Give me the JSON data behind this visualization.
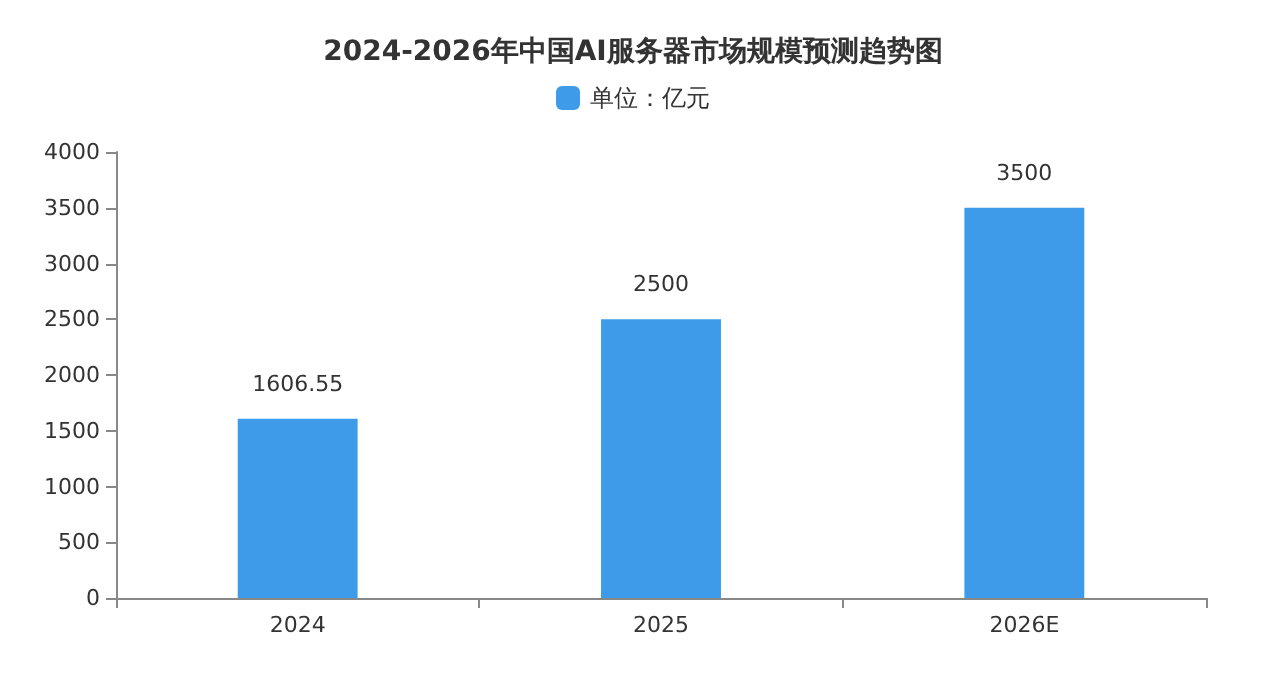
{
  "chart_data": {
    "type": "bar",
    "title": "2024-2026年中国AI服务器市场规模预测趋势图",
    "categories": [
      "2024",
      "2025",
      "2026E"
    ],
    "series": [
      {
        "name": "单位：亿元",
        "color": "#3d9be9",
        "values": [
          1606.55,
          2500,
          3500
        ]
      }
    ],
    "ylim": [
      0,
      4000
    ],
    "yticks": [
      0,
      500,
      1000,
      1500,
      2000,
      2500,
      3000,
      3500,
      4000
    ],
    "grid": false,
    "legend": "top",
    "data_labels": true
  }
}
